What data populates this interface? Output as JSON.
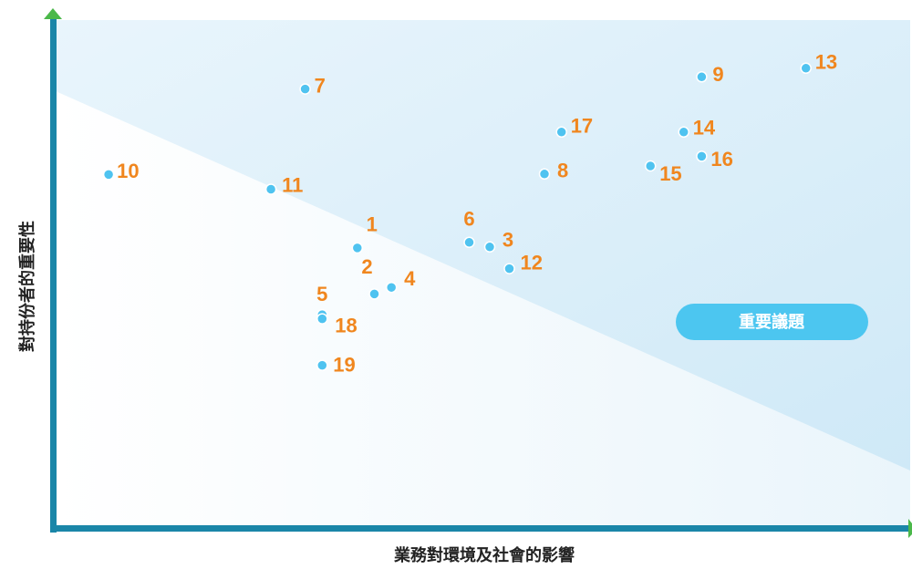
{
  "chart_data": {
    "type": "scatter",
    "title": "",
    "xlabel": "業務對環境及社會的影響",
    "ylabel": "對持份者的重要性",
    "xlim": [
      0,
      100
    ],
    "ylim": [
      0,
      100
    ],
    "grid": false,
    "highlight_label": "重要議題",
    "colors": {
      "axis": "#1a86a8",
      "axis_arrow": "#4bb84a",
      "point": "#4fc3f0",
      "label": "#f0861e",
      "badge": "#4cc6f0",
      "region_light": "#eaf5fb",
      "region_dark": "#d3ebf8"
    },
    "points": [
      {
        "label": "1",
        "x": 35.3,
        "y": 54.8
      },
      {
        "label": "2",
        "x": 37.3,
        "y": 45.7
      },
      {
        "label": "3",
        "x": 50.8,
        "y": 55.0
      },
      {
        "label": "4",
        "x": 39.3,
        "y": 47.0
      },
      {
        "label": "5",
        "x": 31.2,
        "y": 41.6
      },
      {
        "label": "6",
        "x": 48.4,
        "y": 55.9
      },
      {
        "label": "7",
        "x": 29.2,
        "y": 86.2
      },
      {
        "label": "8",
        "x": 57.2,
        "y": 69.4
      },
      {
        "label": "9",
        "x": 75.6,
        "y": 88.6
      },
      {
        "label": "10",
        "x": 6.2,
        "y": 69.3
      },
      {
        "label": "11",
        "x": 25.2,
        "y": 66.4
      },
      {
        "label": "12",
        "x": 53.1,
        "y": 50.7
      },
      {
        "label": "13",
        "x": 87.8,
        "y": 90.3
      },
      {
        "label": "14",
        "x": 73.5,
        "y": 77.7
      },
      {
        "label": "15",
        "x": 69.6,
        "y": 71.0
      },
      {
        "label": "16",
        "x": 75.6,
        "y": 72.9
      },
      {
        "label": "17",
        "x": 59.2,
        "y": 77.7
      },
      {
        "label": "18",
        "x": 31.2,
        "y": 40.8
      },
      {
        "label": "19",
        "x": 31.2,
        "y": 31.6
      }
    ]
  }
}
